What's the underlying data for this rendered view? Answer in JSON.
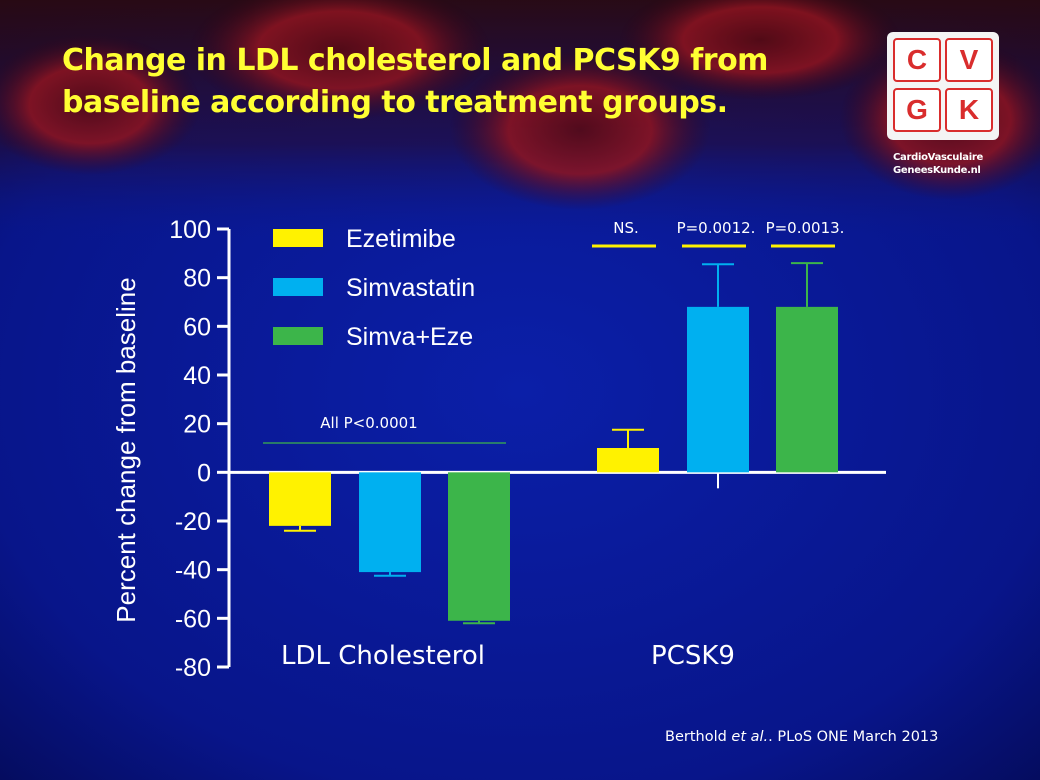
{
  "slide": {
    "title": "Change in LDL cholesterol and PCSK9 from baseline according to treatment groups.",
    "citation": {
      "authors": "Berthold",
      "etal": "et al.",
      "source": "PLoS ONE March 2013"
    }
  },
  "logo": {
    "letters": [
      "C",
      "V",
      "G",
      "K"
    ],
    "line1": "CardioVasculaire",
    "line2": "GeneesKunde.nl"
  },
  "colors": {
    "background": "#0a1a8c",
    "title": "#ffff33",
    "ezetimibe": "#fff200",
    "simvastatin": "#00b0f0",
    "simva_eze": "#3cb54a",
    "logo_red": "#d92d2d"
  },
  "chart_data": {
    "type": "bar",
    "categories": [
      "LDL Cholesterol",
      "PCSK9"
    ],
    "ylabel": "Percent change from baseline",
    "ylim": [
      -80,
      100
    ],
    "yticks": [
      100,
      80,
      60,
      40,
      20,
      0,
      -20,
      -40,
      -60,
      -80
    ],
    "legend_position": "top-left",
    "series": [
      {
        "name": "Ezetimibe",
        "color": "#fff200",
        "values": [
          -22,
          10
        ],
        "errors": [
          2,
          7.5
        ]
      },
      {
        "name": "Simvastatin",
        "color": "#00b0f0",
        "values": [
          -41,
          68
        ],
        "errors": [
          1.5,
          17.5
        ]
      },
      {
        "name": "Simva+Eze",
        "color": "#3cb54a",
        "values": [
          -61,
          68
        ],
        "errors": [
          1,
          18
        ]
      }
    ],
    "annotations": [
      {
        "text": "All P<0.0001",
        "category": "LDL Cholesterol",
        "series": "all"
      },
      {
        "text": "NS.",
        "category": "PCSK9",
        "series": "Ezetimibe"
      },
      {
        "text": "P=0.0012.",
        "category": "PCSK9",
        "series": "Simvastatin"
      },
      {
        "text": "P=0.0013.",
        "category": "PCSK9",
        "series": "Simva+Eze"
      }
    ]
  }
}
